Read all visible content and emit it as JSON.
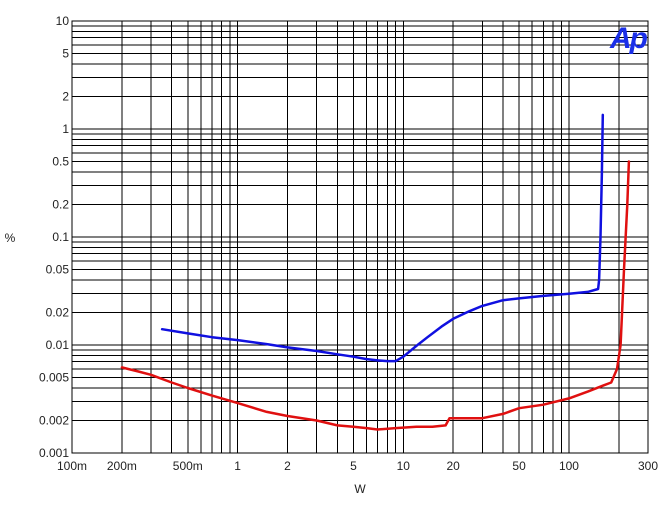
{
  "chart_data": {
    "type": "line",
    "title": "",
    "xlabel": "W",
    "ylabel": "%",
    "x_scale": "log",
    "y_scale": "log",
    "xlim": [
      0.1,
      300
    ],
    "ylim": [
      0.001,
      10
    ],
    "grid": true,
    "logo_text": "Ap",
    "logo_color": "#1a2fe8",
    "x_ticks": [
      {
        "v": 0.1,
        "label": "100m"
      },
      {
        "v": 0.2,
        "label": "200m"
      },
      {
        "v": 0.5,
        "label": "500m"
      },
      {
        "v": 1,
        "label": "1"
      },
      {
        "v": 2,
        "label": "2"
      },
      {
        "v": 5,
        "label": "5"
      },
      {
        "v": 10,
        "label": "10"
      },
      {
        "v": 20,
        "label": "20"
      },
      {
        "v": 50,
        "label": "50"
      },
      {
        "v": 100,
        "label": "100"
      },
      {
        "v": 300,
        "label": "300"
      }
    ],
    "y_ticks": [
      {
        "v": 0.001,
        "label": "0.001"
      },
      {
        "v": 0.002,
        "label": "0.002"
      },
      {
        "v": 0.005,
        "label": "0.005"
      },
      {
        "v": 0.01,
        "label": "0.01"
      },
      {
        "v": 0.02,
        "label": "0.02"
      },
      {
        "v": 0.05,
        "label": "0.05"
      },
      {
        "v": 0.1,
        "label": "0.1"
      },
      {
        "v": 0.2,
        "label": "0.2"
      },
      {
        "v": 0.5,
        "label": "0.5"
      },
      {
        "v": 1,
        "label": "1"
      },
      {
        "v": 2,
        "label": "2"
      },
      {
        "v": 5,
        "label": "5"
      },
      {
        "v": 10,
        "label": "10"
      }
    ],
    "series": [
      {
        "color": "#1010e0",
        "points": [
          [
            0.35,
            0.014
          ],
          [
            0.5,
            0.0128
          ],
          [
            0.7,
            0.0118
          ],
          [
            1.0,
            0.0111
          ],
          [
            1.5,
            0.0102
          ],
          [
            2.0,
            0.0095
          ],
          [
            3.0,
            0.0088
          ],
          [
            4.0,
            0.0082
          ],
          [
            5.0,
            0.0078
          ],
          [
            6.0,
            0.0074
          ],
          [
            7.0,
            0.0072
          ],
          [
            8.0,
            0.0071
          ],
          [
            9.0,
            0.0071
          ],
          [
            10.0,
            0.0078
          ],
          [
            12.0,
            0.0098
          ],
          [
            14.0,
            0.0118
          ],
          [
            17.0,
            0.0148
          ],
          [
            20.0,
            0.0175
          ],
          [
            25.0,
            0.0205
          ],
          [
            30.0,
            0.023
          ],
          [
            40.0,
            0.026
          ],
          [
            50.0,
            0.027
          ],
          [
            70.0,
            0.0285
          ],
          [
            100.0,
            0.0298
          ],
          [
            130.0,
            0.031
          ],
          [
            150.0,
            0.033
          ],
          [
            152.0,
            0.04
          ],
          [
            155.0,
            0.1
          ],
          [
            158.0,
            0.4
          ],
          [
            160.0,
            1.35
          ]
        ]
      },
      {
        "color": "#e01010",
        "points": [
          [
            0.2,
            0.0062
          ],
          [
            0.25,
            0.0057
          ],
          [
            0.3,
            0.0053
          ],
          [
            0.4,
            0.0045
          ],
          [
            0.5,
            0.004
          ],
          [
            0.7,
            0.0034
          ],
          [
            1.0,
            0.0029
          ],
          [
            1.5,
            0.0024
          ],
          [
            2.0,
            0.0022
          ],
          [
            3.0,
            0.002
          ],
          [
            4.0,
            0.0018
          ],
          [
            5.0,
            0.00175
          ],
          [
            6.0,
            0.0017
          ],
          [
            7.0,
            0.00165
          ],
          [
            9.0,
            0.0017
          ],
          [
            12.0,
            0.00175
          ],
          [
            15.0,
            0.00175
          ],
          [
            18.0,
            0.0018
          ],
          [
            19.0,
            0.0021
          ],
          [
            25.0,
            0.0021
          ],
          [
            30.0,
            0.0021
          ],
          [
            40.0,
            0.0023
          ],
          [
            50.0,
            0.0026
          ],
          [
            70.0,
            0.0028
          ],
          [
            100.0,
            0.0032
          ],
          [
            130.0,
            0.0037
          ],
          [
            160.0,
            0.0042
          ],
          [
            180.0,
            0.0045
          ],
          [
            195.0,
            0.006
          ],
          [
            205.0,
            0.01
          ],
          [
            215.0,
            0.05
          ],
          [
            225.0,
            0.2
          ],
          [
            230.0,
            0.5
          ]
        ]
      }
    ]
  }
}
